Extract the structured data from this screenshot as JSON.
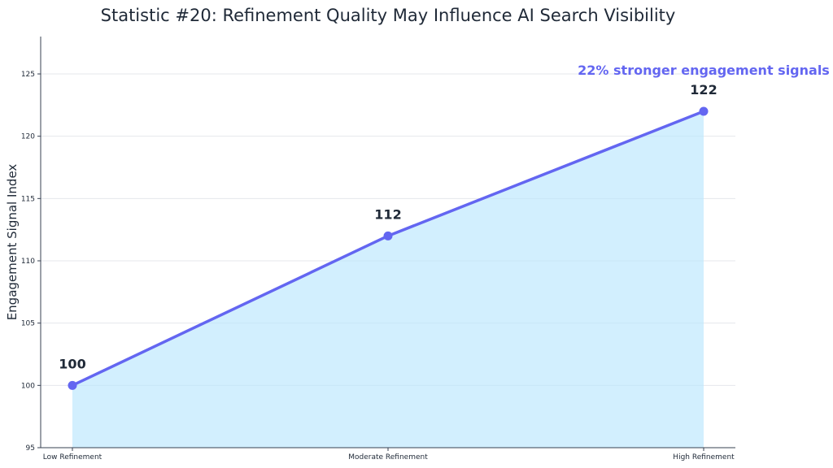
{
  "chart_data": {
    "type": "area",
    "title": "Statistic #20: Refinement Quality May Influence AI Search Visibility",
    "xlabel": "",
    "ylabel": "Engagement Signal Index",
    "categories": [
      "Low Refinement",
      "Moderate Refinement",
      "High Refinement"
    ],
    "series": [
      {
        "values": [
          100,
          112,
          122
        ]
      }
    ],
    "data_labels": [
      "100",
      "112",
      "122"
    ],
    "ylim": [
      95,
      128
    ],
    "yticks": [
      95,
      100,
      105,
      110,
      115,
      120,
      125
    ],
    "grid": "horizontal",
    "annotation": "22% stronger engagement signals",
    "colors": {
      "line": "#6366f1",
      "fill": "#bae6fd",
      "annotation": "#6366f1",
      "grid": "#e5e7eb",
      "axis": "#374151",
      "text": "#1f2937"
    }
  }
}
